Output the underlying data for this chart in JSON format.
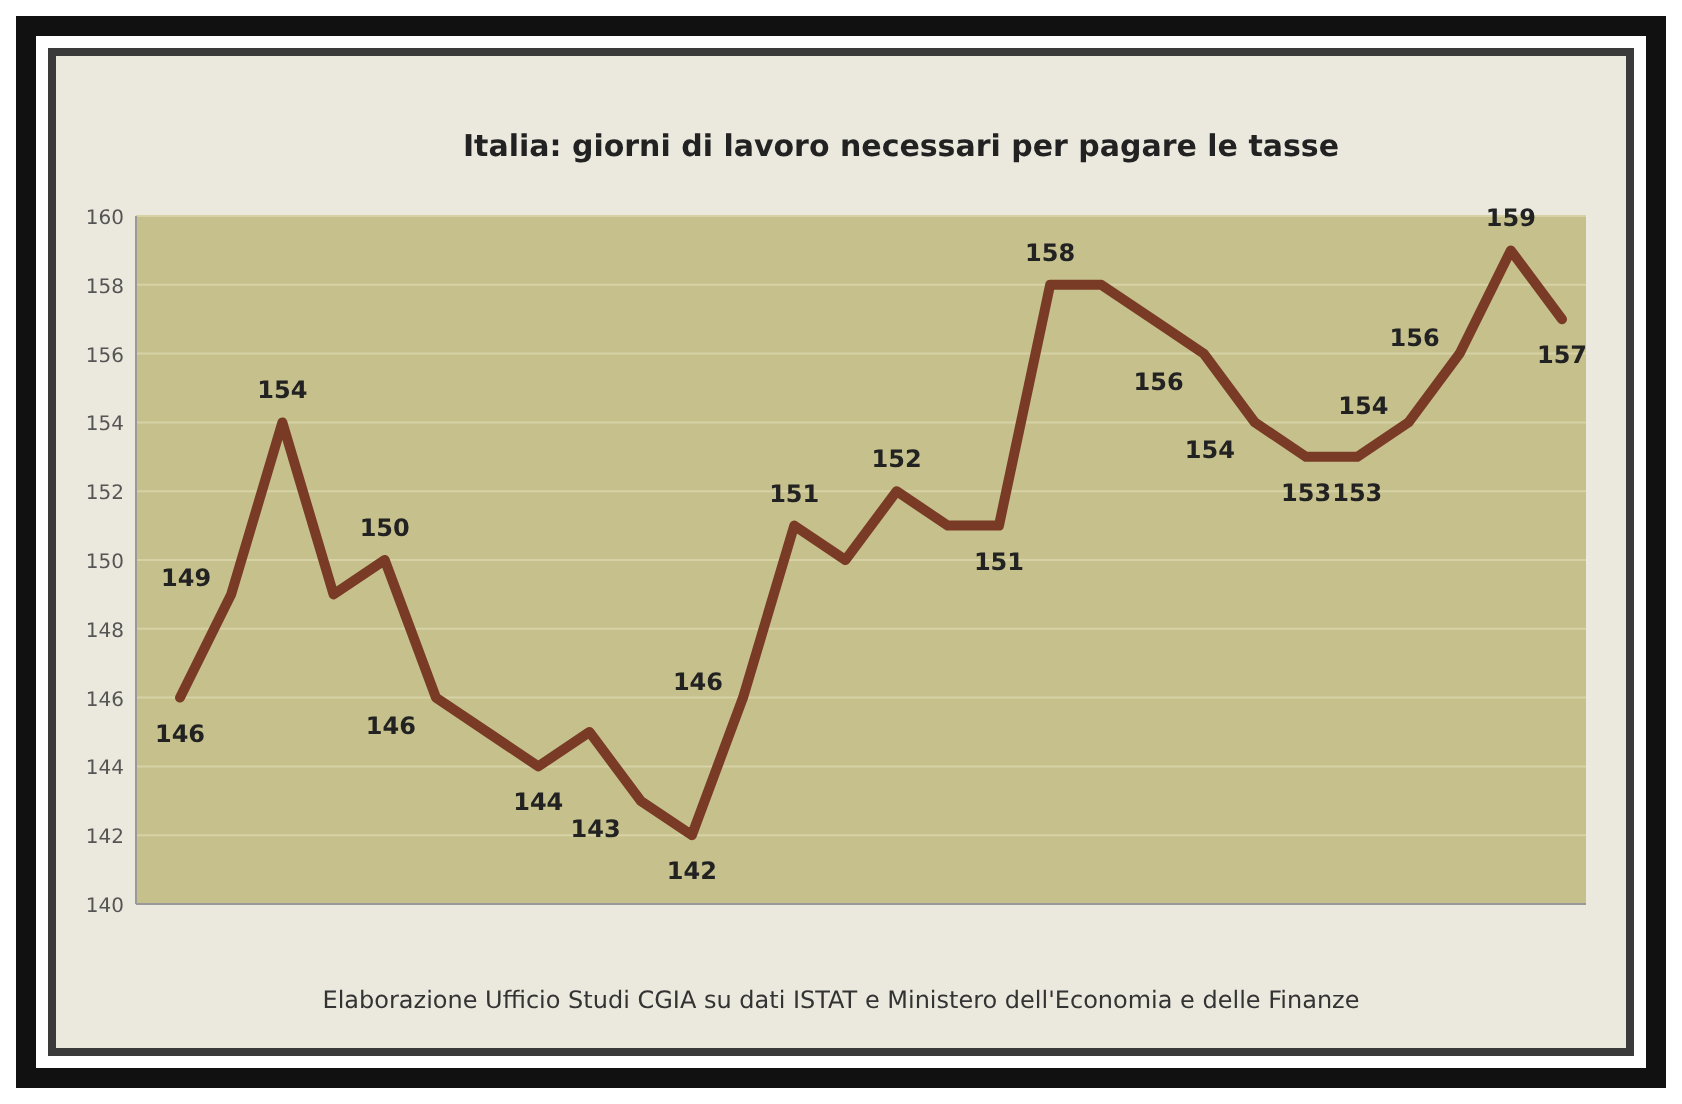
{
  "chart_data": {
    "type": "line",
    "title": "Italia: giorni di lavoro necessari per pagare le tasse",
    "annotations": [
      "Elaborazione Ufficio Studi CGIA su dati ISTAT e Ministero dell'Economia e delle Finanze"
    ],
    "categories": [
      null,
      null,
      null,
      null,
      null,
      null,
      null,
      null,
      null,
      null,
      null,
      null,
      null,
      null,
      null,
      null,
      null,
      null,
      null,
      null,
      null,
      null,
      null,
      null,
      null,
      null,
      null,
      null
    ],
    "series": [
      {
        "color": "#7a3b26",
        "values": [
          146,
          149,
          154,
          149,
          150,
          146,
          145,
          144,
          145,
          143,
          142,
          146,
          151,
          150,
          152,
          151,
          151,
          158,
          158,
          157,
          156,
          154,
          153,
          153,
          154,
          156,
          159,
          157
        ],
        "value_labels": [
          "146",
          "149",
          "154",
          null,
          "150",
          "146",
          null,
          "144",
          null,
          "143",
          "142",
          "146",
          "151",
          null,
          "152",
          null,
          "151",
          "158",
          null,
          null,
          "156",
          "154",
          "153",
          "153",
          "154",
          "156",
          "159",
          "157"
        ]
      }
    ],
    "ylim": [
      140,
      160
    ],
    "yticks": [
      140,
      142,
      144,
      146,
      148,
      150,
      152,
      154,
      156,
      158,
      160
    ],
    "grid": "y",
    "marker": "none",
    "line_style": "solid"
  }
}
